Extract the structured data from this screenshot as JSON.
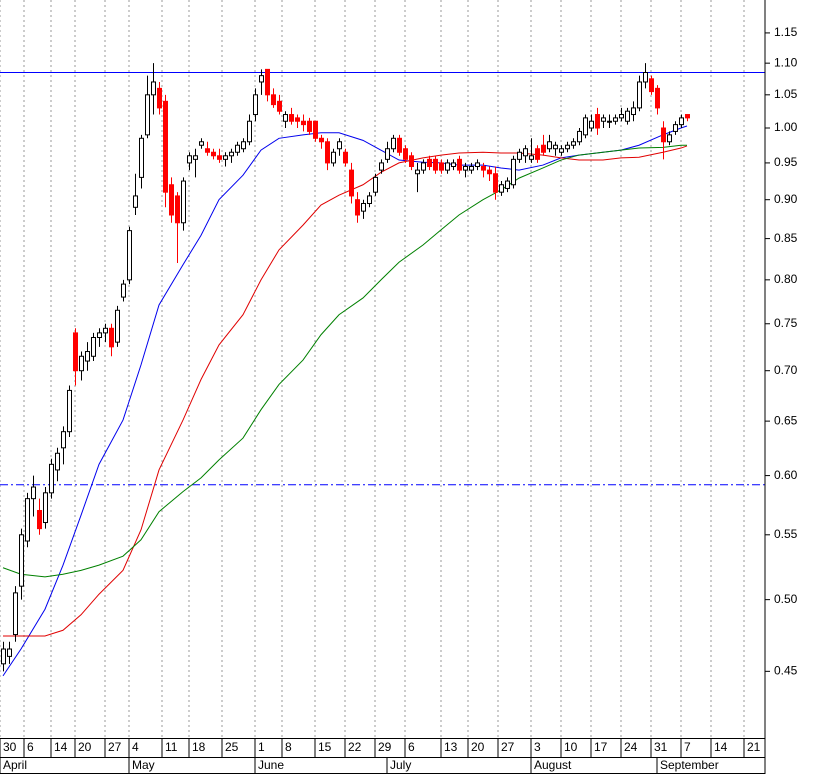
{
  "chart_data": {
    "type": "candlestick",
    "log_scale": true,
    "grid_x": true,
    "up_color": "#ffffff",
    "down_color": "#ff0000",
    "outline_color": "#000000",
    "xlim": [
      -0.5,
      127
    ],
    "ylim": [
      0.408,
      1.207
    ],
    "yticks": [
      0.45,
      {
        "value": 0.5,
        "label": "0.50"
      },
      0.55,
      {
        "value": 0.6,
        "label": "0.60"
      },
      0.65,
      {
        "value": 0.7,
        "label": "0.70"
      },
      0.75,
      {
        "value": 0.8,
        "label": "0.80"
      },
      0.85,
      {
        "value": 0.9,
        "label": "0.90"
      },
      0.95,
      {
        "value": 1,
        "label": "1.00"
      },
      1.05,
      {
        "value": 1.1,
        "label": "1.10"
      },
      1.15
    ],
    "xticks": [
      {
        "value": -0.5,
        "label": "30"
      },
      {
        "value": 3.5,
        "label": "6"
      },
      {
        "value": 8,
        "label": "14"
      },
      {
        "value": 12,
        "label": "20"
      },
      {
        "value": 17,
        "label": "27"
      },
      {
        "value": 21,
        "label": "4"
      },
      {
        "value": 26.5,
        "label": "11"
      },
      {
        "value": 31,
        "label": "18"
      },
      {
        "value": 36.5,
        "label": "25"
      },
      {
        "value": 42,
        "label": "1"
      },
      {
        "value": 46.5,
        "label": "8"
      },
      {
        "value": 52,
        "label": "15"
      },
      {
        "value": 57,
        "label": "22"
      },
      {
        "value": 62,
        "label": "29"
      },
      {
        "value": 67,
        "label": "6"
      },
      {
        "value": 73,
        "label": "13"
      },
      {
        "value": 77.5,
        "label": "20"
      },
      {
        "value": 82.5,
        "label": "27"
      },
      {
        "value": 88,
        "label": "3"
      },
      {
        "value": 93,
        "label": "10"
      },
      {
        "value": 98,
        "label": "17"
      },
      {
        "value": 103,
        "label": "24"
      },
      {
        "value": 108,
        "label": "31"
      },
      {
        "value": 113,
        "label": "7"
      },
      {
        "value": 118,
        "label": "14"
      },
      {
        "value": 123.5,
        "label": "21"
      }
    ],
    "month_ticks": [
      {
        "value": -0.5,
        "label": "April"
      },
      {
        "value": 21,
        "label": "May"
      },
      {
        "value": 42,
        "label": "June"
      },
      {
        "value": 64,
        "label": "July"
      },
      {
        "value": 88,
        "label": "August"
      },
      {
        "value": 109,
        "label": "September"
      }
    ],
    "hlines": [
      {
        "value": 1.085,
        "color": "#0000ff",
        "dash": "none"
      },
      {
        "value": 0.592,
        "color": "#0000ff",
        "dash": "8,3,2,3"
      }
    ],
    "ohlc": [
      [
        0.455,
        0.47,
        0.45,
        0.465
      ],
      [
        0.46,
        0.47,
        0.455,
        0.465
      ],
      [
        0.475,
        0.51,
        0.47,
        0.505
      ],
      [
        0.51,
        0.555,
        0.5,
        0.55
      ],
      [
        0.545,
        0.585,
        0.54,
        0.58
      ],
      [
        0.58,
        0.6,
        0.565,
        0.59
      ],
      [
        0.57,
        0.58,
        0.55,
        0.555
      ],
      [
        0.56,
        0.59,
        0.555,
        0.585
      ],
      [
        0.585,
        0.615,
        0.58,
        0.61
      ],
      [
        0.605,
        0.625,
        0.595,
        0.62
      ],
      [
        0.625,
        0.645,
        0.61,
        0.64
      ],
      [
        0.64,
        0.685,
        0.635,
        0.68
      ],
      [
        0.74,
        0.745,
        0.685,
        0.7
      ],
      [
        0.7,
        0.72,
        0.69,
        0.715
      ],
      [
        0.71,
        0.73,
        0.7,
        0.72
      ],
      [
        0.715,
        0.74,
        0.71,
        0.735
      ],
      [
        0.735,
        0.745,
        0.725,
        0.74
      ],
      [
        0.74,
        0.75,
        0.73,
        0.745
      ],
      [
        0.745,
        0.75,
        0.715,
        0.725
      ],
      [
        0.73,
        0.77,
        0.725,
        0.765
      ],
      [
        0.78,
        0.8,
        0.775,
        0.795
      ],
      [
        0.8,
        0.865,
        0.795,
        0.86
      ],
      [
        0.89,
        0.935,
        0.88,
        0.905
      ],
      [
        0.93,
        0.99,
        0.915,
        0.985
      ],
      [
        0.99,
        1.08,
        0.985,
        1.05
      ],
      [
        1.05,
        1.1,
        1.02,
        1.07
      ],
      [
        1.06,
        1.07,
        1.02,
        1.03
      ],
      [
        1.04,
        1.05,
        0.89,
        0.91
      ],
      [
        0.92,
        0.93,
        0.87,
        0.88
      ],
      [
        0.905,
        0.91,
        0.82,
        0.87
      ],
      [
        0.87,
        0.93,
        0.86,
        0.925
      ],
      [
        0.95,
        0.965,
        0.94,
        0.96
      ],
      [
        0.955,
        0.97,
        0.93,
        0.96
      ],
      [
        0.975,
        0.985,
        0.97,
        0.98
      ],
      [
        0.97,
        0.98,
        0.96,
        0.965
      ],
      [
        0.965,
        0.97,
        0.955,
        0.96
      ],
      [
        0.96,
        0.97,
        0.95,
        0.955
      ],
      [
        0.955,
        0.965,
        0.945,
        0.96
      ],
      [
        0.96,
        0.97,
        0.95,
        0.965
      ],
      [
        0.965,
        0.98,
        0.96,
        0.975
      ],
      [
        0.97,
        0.985,
        0.965,
        0.98
      ],
      [
        0.98,
        1.02,
        0.975,
        1.01
      ],
      [
        1.02,
        1.06,
        1.01,
        1.05
      ],
      [
        1.07,
        1.09,
        1.05,
        1.08
      ],
      [
        1.09,
        1.09,
        1.04,
        1.05
      ],
      [
        1.05,
        1.06,
        1.03,
        1.035
      ],
      [
        1.04,
        1.05,
        1.02,
        1.025
      ],
      [
        1.01,
        1.025,
        1,
        1.02
      ],
      [
        1.02,
        1.03,
        1.005,
        1.01
      ],
      [
        1.015,
        1.02,
        1,
        1.01
      ],
      [
        1.01,
        1.02,
        0.995,
        1.005
      ],
      [
        1.01,
        1.015,
        0.99,
        0.995
      ],
      [
        1.01,
        1.01,
        0.98,
        0.985
      ],
      [
        0.985,
        0.99,
        0.97,
        0.98
      ],
      [
        0.98,
        0.985,
        0.94,
        0.95
      ],
      [
        0.95,
        0.97,
        0.945,
        0.965
      ],
      [
        0.97,
        0.985,
        0.96,
        0.98
      ],
      [
        0.965,
        0.97,
        0.945,
        0.95
      ],
      [
        0.94,
        0.95,
        0.895,
        0.905
      ],
      [
        0.9,
        0.91,
        0.87,
        0.88
      ],
      [
        0.885,
        0.9,
        0.875,
        0.895
      ],
      [
        0.895,
        0.91,
        0.89,
        0.905
      ],
      [
        0.91,
        0.935,
        0.905,
        0.93
      ],
      [
        0.94,
        0.955,
        0.935,
        0.95
      ],
      [
        0.955,
        0.98,
        0.95,
        0.97
      ],
      [
        0.97,
        0.99,
        0.965,
        0.985
      ],
      [
        0.985,
        0.99,
        0.96,
        0.965
      ],
      [
        0.97,
        0.975,
        0.95,
        0.955
      ],
      [
        0.96,
        0.965,
        0.94,
        0.945
      ],
      [
        0.935,
        0.95,
        0.91,
        0.94
      ],
      [
        0.94,
        0.955,
        0.935,
        0.95
      ],
      [
        0.955,
        0.96,
        0.94,
        0.945
      ],
      [
        0.955,
        0.96,
        0.935,
        0.94
      ],
      [
        0.95,
        0.955,
        0.935,
        0.94
      ],
      [
        0.94,
        0.955,
        0.935,
        0.95
      ],
      [
        0.945,
        0.955,
        0.94,
        0.95
      ],
      [
        0.955,
        0.96,
        0.935,
        0.94
      ],
      [
        0.94,
        0.95,
        0.93,
        0.945
      ],
      [
        0.94,
        0.95,
        0.935,
        0.945
      ],
      [
        0.945,
        0.955,
        0.94,
        0.95
      ],
      [
        0.945,
        0.95,
        0.93,
        0.94
      ],
      [
        0.94,
        0.945,
        0.925,
        0.935
      ],
      [
        0.935,
        0.945,
        0.9,
        0.91
      ],
      [
        0.91,
        0.925,
        0.905,
        0.92
      ],
      [
        0.915,
        0.93,
        0.91,
        0.925
      ],
      [
        0.92,
        0.96,
        0.915,
        0.955
      ],
      [
        0.955,
        0.97,
        0.95,
        0.965
      ],
      [
        0.96,
        0.975,
        0.95,
        0.97
      ],
      [
        0.955,
        0.985,
        0.95,
        0.96
      ],
      [
        0.97,
        0.975,
        0.95,
        0.955
      ],
      [
        0.975,
        0.99,
        0.96,
        0.965
      ],
      [
        0.97,
        0.99,
        0.965,
        0.98
      ],
      [
        0.97,
        0.98,
        0.96,
        0.975
      ],
      [
        0.965,
        0.975,
        0.96,
        0.97
      ],
      [
        0.97,
        0.98,
        0.965,
        0.975
      ],
      [
        0.975,
        0.985,
        0.97,
        0.98
      ],
      [
        0.98,
        1,
        0.975,
        0.995
      ],
      [
        0.99,
        1.02,
        0.985,
        1.015
      ],
      [
        1,
        1.02,
        0.995,
        1.01
      ],
      [
        1.02,
        1.03,
        0.99,
        1
      ],
      [
        1.01,
        1.02,
        1,
        1.015
      ],
      [
        1.01,
        1.02,
        1,
        1.01
      ],
      [
        1.01,
        1.02,
        1.005,
        1.015
      ],
      [
        1.015,
        1.03,
        1.01,
        1.02
      ],
      [
        1.01,
        1.03,
        1.005,
        1.025
      ],
      [
        1.02,
        1.04,
        1.01,
        1.03
      ],
      [
        1.03,
        1.08,
        1.025,
        1.07
      ],
      [
        1.07,
        1.1,
        1.06,
        1.085
      ],
      [
        1.075,
        1.08,
        1.05,
        1.055
      ],
      [
        1.06,
        1.065,
        1.02,
        1.03
      ],
      [
        1,
        1.01,
        0.955,
        0.98
      ],
      [
        0.98,
        0.995,
        0.975,
        0.99
      ],
      [
        0.995,
        1.01,
        0.99,
        1.005
      ],
      [
        1.005,
        1.02,
        1,
        1.015
      ],
      [
        1.02,
        1.02,
        1.01,
        1.015
      ]
    ],
    "series": [
      {
        "color": "#0000ee",
        "x": [
          0,
          3,
          7,
          10,
          13,
          16,
          20,
          23,
          26,
          30,
          33,
          36,
          40,
          43,
          46,
          50,
          53,
          56,
          60,
          63,
          66,
          70,
          73,
          76,
          80,
          83,
          86,
          90,
          93,
          96,
          100,
          103,
          106,
          110,
          113,
          114
        ],
        "values": [
          0.447,
          0.465,
          0.493,
          0.526,
          0.566,
          0.61,
          0.651,
          0.706,
          0.771,
          0.818,
          0.854,
          0.9,
          0.933,
          0.968,
          0.985,
          0.99,
          0.993,
          0.993,
          0.982,
          0.968,
          0.954,
          0.951,
          0.95,
          0.947,
          0.947,
          0.943,
          0.94,
          0.947,
          0.957,
          0.961,
          0.965,
          0.968,
          0.975,
          0.99,
          1,
          1.003
        ]
      },
      {
        "color": "#e00000",
        "x": [
          0,
          3,
          7,
          10,
          13,
          16,
          20,
          23,
          26,
          30,
          33,
          36,
          40,
          43,
          46,
          50,
          53,
          56,
          60,
          63,
          66,
          70,
          73,
          76,
          80,
          83,
          86,
          90,
          93,
          96,
          100,
          103,
          106,
          110,
          113,
          114
        ],
        "values": [
          0.474,
          0.474,
          0.474,
          0.478,
          0.489,
          0.504,
          0.522,
          0.554,
          0.605,
          0.651,
          0.691,
          0.727,
          0.76,
          0.8,
          0.836,
          0.867,
          0.893,
          0.906,
          0.92,
          0.937,
          0.95,
          0.957,
          0.961,
          0.964,
          0.965,
          0.964,
          0.964,
          0.961,
          0.957,
          0.954,
          0.954,
          0.957,
          0.958,
          0.965,
          0.971,
          0.974
        ]
      },
      {
        "color": "#008000",
        "x": [
          0,
          3,
          7,
          10,
          13,
          16,
          20,
          23,
          26,
          30,
          33,
          36,
          40,
          43,
          46,
          50,
          53,
          56,
          60,
          63,
          66,
          70,
          73,
          76,
          80,
          83,
          86,
          90,
          93,
          96,
          100,
          103,
          106,
          110,
          113,
          114
        ],
        "values": [
          0.524,
          0.519,
          0.517,
          0.519,
          0.522,
          0.526,
          0.533,
          0.546,
          0.569,
          0.586,
          0.598,
          0.614,
          0.634,
          0.661,
          0.686,
          0.711,
          0.738,
          0.76,
          0.779,
          0.8,
          0.821,
          0.842,
          0.861,
          0.88,
          0.9,
          0.913,
          0.929,
          0.943,
          0.954,
          0.961,
          0.965,
          0.968,
          0.971,
          0.972,
          0.975,
          0.975
        ]
      }
    ]
  }
}
